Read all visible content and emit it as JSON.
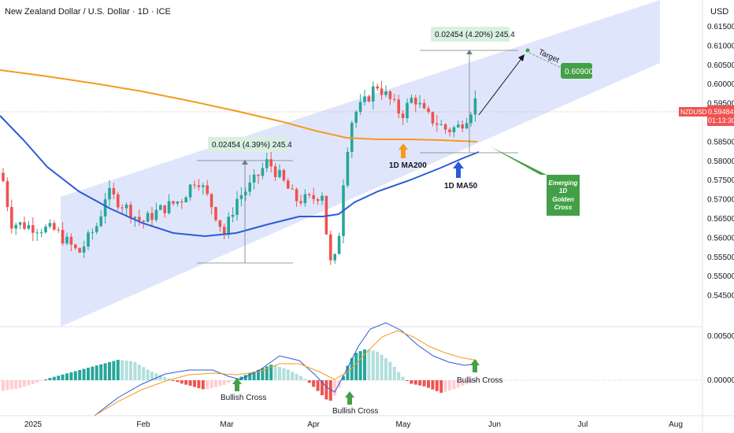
{
  "header": {
    "title": "New Zealand Dollar / U.S. Dollar · 1D · ICE",
    "currency": "USD"
  },
  "price_tag": {
    "symbol": "NZDUSD",
    "price": "0.59484",
    "countdown": "01:13:30"
  },
  "chart_data": {
    "type": "candlestick",
    "price_axis": {
      "ticks": [
        "0.61500",
        "0.61000",
        "0.60500",
        "0.60000",
        "0.59500",
        "0.59000",
        "0.58500",
        "0.58000",
        "0.57500",
        "0.57000",
        "0.56500",
        "0.56000",
        "0.55500",
        "0.55000",
        "0.54500"
      ],
      "range": [
        0.5435,
        0.6195
      ]
    },
    "macd_axis": {
      "ticks": [
        "0.00500",
        "0.00000"
      ]
    },
    "time_axis": {
      "labels": [
        "2025",
        "Feb",
        "Mar",
        "Apr",
        "May",
        "Jun",
        "Jul",
        "Aug"
      ]
    },
    "annotations": {
      "measure_1": "0.02454 (4.39%) 245.4",
      "measure_2": "0.02454 (4.20%) 245.4",
      "target_label": "Target",
      "target_value": "0.60900",
      "ma200_label": "1D MA200",
      "ma50_label": "1D MA50",
      "golden_cross_line1": "Emerging",
      "golden_cross_line2": "1D",
      "golden_cross_line3": "Golden",
      "golden_cross_line4": "Cross",
      "bullish_cross_1": "Bullish Cross",
      "bullish_cross_2": "Bullish Cross",
      "bullish_cross_3": "Bullish Cross"
    },
    "series": [
      {
        "name": "1D MA200",
        "color": "#f59a1f"
      },
      {
        "name": "1D MA50",
        "color": "#2a5bd7"
      }
    ],
    "colors": {
      "up": "#26a69a",
      "down": "#ef5350",
      "channel": "#d4defa",
      "target_box": "#43a047"
    }
  }
}
